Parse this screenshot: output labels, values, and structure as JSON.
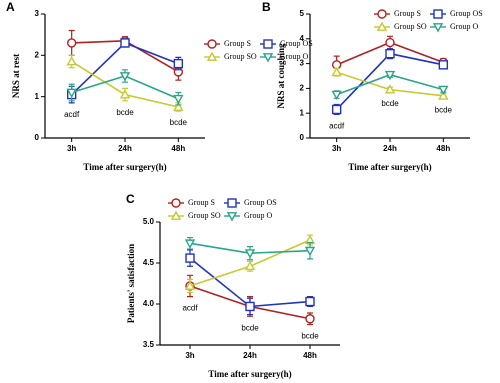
{
  "chart_data": [
    {
      "type": "line",
      "panel_label": "A",
      "y_label": "NRS  at rest",
      "x_label": "Time after surgery(h)",
      "categories": [
        "3h",
        "24h",
        "48h"
      ],
      "ylim": [
        0,
        3
      ],
      "yticks": [
        0,
        1,
        2,
        3
      ],
      "annotations": [
        "acdf",
        "bcde",
        "bcde"
      ],
      "series": [
        {
          "name": "Group S",
          "color": "#b22020",
          "marker": "circle",
          "values": [
            2.3,
            2.35,
            1.6
          ],
          "errors": [
            0.3,
            0.1,
            0.2
          ]
        },
        {
          "name": "Group OS",
          "color": "#2233bb",
          "marker": "square",
          "values": [
            1.05,
            2.3,
            1.8
          ],
          "errors": [
            0.2,
            0.1,
            0.15
          ]
        },
        {
          "name": "Group SO",
          "color": "#c8c830",
          "marker": "triangle-up",
          "values": [
            1.85,
            1.05,
            0.75
          ],
          "errors": [
            0.15,
            0.15,
            0.1
          ]
        },
        {
          "name": "Group O",
          "color": "#2aa58a",
          "marker": "triangle-down",
          "values": [
            1.1,
            1.5,
            0.95
          ],
          "errors": [
            0.2,
            0.15,
            0.15
          ]
        }
      ]
    },
    {
      "type": "line",
      "panel_label": "B",
      "y_label": "NRS  at coughing",
      "x_label": "Time after surgery(h)",
      "categories": [
        "3h",
        "24h",
        "48h"
      ],
      "ylim": [
        0,
        5
      ],
      "yticks": [
        0,
        1,
        2,
        3,
        4,
        5
      ],
      "annotations": [
        "acdf",
        "bcde",
        "bcde"
      ],
      "series": [
        {
          "name": "Group S",
          "color": "#b22020",
          "marker": "circle",
          "values": [
            2.95,
            3.85,
            3.05
          ],
          "errors": [
            0.35,
            0.25,
            0.15
          ]
        },
        {
          "name": "Group OS",
          "color": "#2233bb",
          "marker": "square",
          "values": [
            1.15,
            3.4,
            2.95
          ],
          "errors": [
            0.2,
            0.2,
            0.15
          ]
        },
        {
          "name": "Group SO",
          "color": "#c8c830",
          "marker": "triangle-up",
          "values": [
            2.65,
            1.95,
            1.7
          ],
          "errors": [
            0.15,
            0.1,
            0.1
          ]
        },
        {
          "name": "Group O",
          "color": "#2aa58a",
          "marker": "triangle-down",
          "values": [
            1.75,
            2.55,
            1.95
          ],
          "errors": [
            0.15,
            0.1,
            0.1
          ]
        }
      ]
    },
    {
      "type": "line",
      "panel_label": "C",
      "y_label": "Patients' satisfaction",
      "x_label": "Time after surgery(h)",
      "categories": [
        "3h",
        "24h",
        "48h"
      ],
      "ylim": [
        3.5,
        5.0
      ],
      "yticks": [
        3.5,
        {
          "value": 4.0,
          "label": "4.0"
        },
        4.5,
        {
          "value": 5.0,
          "label": "5.0"
        }
      ],
      "annotations": [
        "acdf",
        "bcde",
        "bcde"
      ],
      "series": [
        {
          "name": "Group S",
          "color": "#b22020",
          "marker": "circle",
          "values": [
            4.22,
            3.97,
            3.82
          ],
          "errors": [
            0.13,
            0.12,
            0.07
          ]
        },
        {
          "name": "Group OS",
          "color": "#2233bb",
          "marker": "square",
          "values": [
            4.56,
            3.97,
            4.03
          ],
          "errors": [
            0.1,
            0.1,
            0.06
          ]
        },
        {
          "name": "Group SO",
          "color": "#c8c830",
          "marker": "triangle-up",
          "values": [
            4.22,
            4.46,
            4.78
          ],
          "errors": [
            0.08,
            0.06,
            0.06
          ]
        },
        {
          "name": "Group O",
          "color": "#2aa58a",
          "marker": "triangle-down",
          "values": [
            4.74,
            4.62,
            4.65
          ],
          "errors": [
            0.07,
            0.08,
            0.1
          ]
        }
      ]
    }
  ]
}
